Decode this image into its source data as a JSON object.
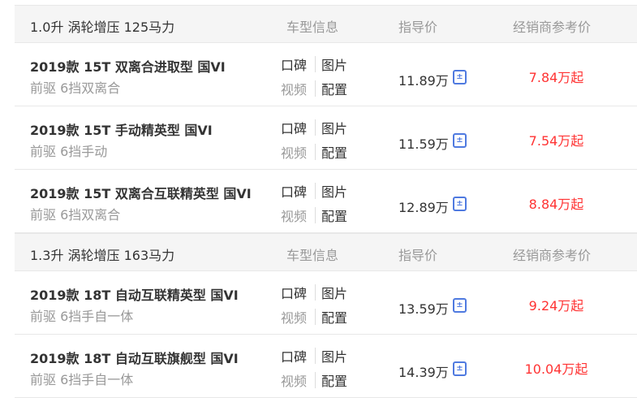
{
  "groups": [
    {
      "title": "1.0升 涡轮增压 125马力",
      "col_info": "车型信息",
      "col_price": "指导价",
      "col_dealer": "经销商参考价",
      "cars": [
        {
          "name": "2019款 15T 双离合进取型 国VI",
          "spec": "前驱 6挡双离合",
          "price": "11.89万",
          "dealer": "7.84万起"
        },
        {
          "name": "2019款 15T 手动精英型 国VI",
          "spec": "前驱 6挡手动",
          "price": "11.59万",
          "dealer": "7.54万起"
        },
        {
          "name": "2019款 15T 双离合互联精英型 国VI",
          "spec": "前驱 6挡双离合",
          "price": "12.89万",
          "dealer": "8.84万起"
        }
      ]
    },
    {
      "title": "1.3升 涡轮增压 163马力",
      "col_info": "车型信息",
      "col_price": "指导价",
      "col_dealer": "经销商参考价",
      "cars": [
        {
          "name": "2019款 18T 自动互联精英型 国VI",
          "spec": "前驱 6挡手自一体",
          "price": "13.59万",
          "dealer": "9.24万起"
        },
        {
          "name": "2019款 18T 自动互联旗舰型 国VI",
          "spec": "前驱 6挡手自一体",
          "price": "14.39万",
          "dealer": "10.04万起"
        }
      ]
    }
  ],
  "links": {
    "reviews": "口碑",
    "photos": "图片",
    "video": "视频",
    "config": "配置"
  },
  "colors": {
    "dealer_price": "#ff3333",
    "calc_icon": "#4f7ae0"
  }
}
